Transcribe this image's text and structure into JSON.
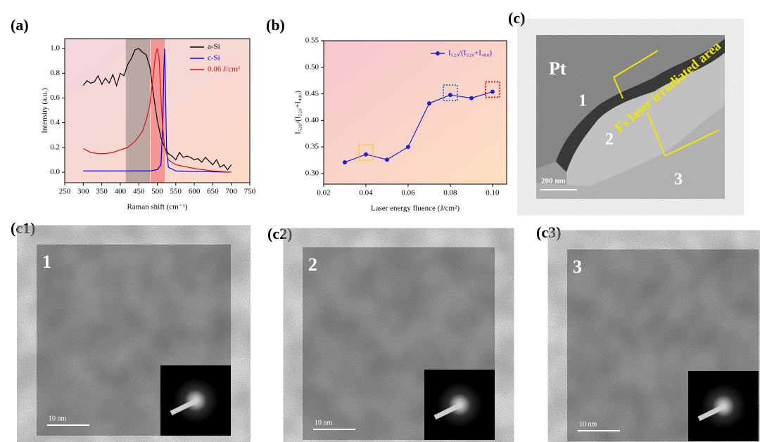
{
  "chart_data": [
    {
      "type": "line",
      "panel_label": "(a)",
      "x_label": "Raman shift (cm⁻¹)",
      "y_label": "Intensity (a.u.)",
      "xlim": [
        250,
        750
      ],
      "xticks": [
        250,
        300,
        350,
        400,
        450,
        500,
        550,
        600,
        650,
        700,
        750
      ],
      "ylim": [
        -0.085,
        1.08
      ],
      "yticks": [
        {
          "value": 0,
          "label": "0.0"
        },
        0.2,
        0.4,
        0.6,
        0.8,
        {
          "value": 1,
          "label": "1.0"
        }
      ],
      "shaded_regions": [
        {
          "xlim": [
            415,
            480
          ],
          "color": "#8a7f7a"
        },
        {
          "xlim": [
            482,
            520
          ],
          "color": "#f06060"
        }
      ],
      "legend": "upper right",
      "series": [
        {
          "name": "a-Si",
          "color": "#000000",
          "x": [
            300,
            310,
            320,
            330,
            340,
            350,
            360,
            370,
            380,
            390,
            400,
            410,
            420,
            430,
            440,
            450,
            460,
            470,
            480,
            490,
            500,
            510,
            520,
            530,
            540,
            550,
            560,
            570,
            580,
            590,
            600,
            610,
            620,
            630,
            640,
            650,
            660,
            670,
            680,
            690,
            700
          ],
          "values": [
            0.7,
            0.74,
            0.72,
            0.73,
            0.78,
            0.71,
            0.76,
            0.72,
            0.79,
            0.7,
            0.8,
            0.78,
            0.87,
            0.92,
            0.99,
            1.0,
            0.97,
            0.95,
            0.85,
            0.62,
            0.42,
            0.28,
            0.2,
            0.15,
            0.13,
            0.1,
            0.16,
            0.12,
            0.13,
            0.12,
            0.1,
            0.11,
            0.08,
            0.12,
            0.09,
            0.06,
            0.1,
            0.04,
            0.06,
            0.02,
            0.06
          ]
        },
        {
          "name": "c-Si",
          "color": "#0000ee",
          "x": [
            300,
            400,
            480,
            500,
            510,
            515,
            518,
            520,
            522,
            525,
            530,
            550,
            700
          ],
          "values": [
            0.01,
            0.01,
            0.01,
            0.02,
            0.06,
            0.4,
            0.85,
            1.0,
            0.7,
            0.2,
            0.04,
            0.01,
            0.0
          ]
        },
        {
          "name": "0.06 J/cm²",
          "color": "#dd1111",
          "x": [
            300,
            320,
            340,
            360,
            380,
            400,
            420,
            440,
            460,
            470,
            480,
            490,
            495,
            500,
            505,
            510,
            515,
            520,
            530,
            550,
            600,
            650,
            700
          ],
          "values": [
            0.19,
            0.16,
            0.15,
            0.15,
            0.16,
            0.18,
            0.2,
            0.25,
            0.33,
            0.42,
            0.55,
            0.8,
            0.95,
            1.0,
            0.92,
            0.6,
            0.35,
            0.2,
            0.1,
            0.06,
            0.03,
            0.01,
            0.0
          ]
        }
      ]
    },
    {
      "type": "line",
      "panel_label": "(b)",
      "x_label": "Laser energy fluence (J/cm²)",
      "y_label": "I₅₂₀/(I₅₂₀+I₄₈₀)",
      "xlim": [
        0.02,
        0.1067
      ],
      "xticks": [
        0.02,
        0.04,
        0.06,
        0.08,
        {
          "value": 0.1,
          "label": "0.10"
        }
      ],
      "ylim": [
        0.28,
        0.55
      ],
      "yticks": [
        {
          "value": 0.3,
          "label": "0.30"
        },
        0.35,
        {
          "value": 0.4,
          "label": "0.40"
        },
        0.45,
        {
          "value": 0.5,
          "label": "0.50"
        },
        0.55
      ],
      "legend": "upper right",
      "x": [
        0.03,
        0.04,
        0.05,
        0.06,
        0.07,
        0.08,
        0.09,
        0.1
      ],
      "series": [
        {
          "name": "I₅₂₀/(I₅₂₀+I₄₈₀)",
          "color": "#2222cc",
          "values": [
            0.321,
            0.336,
            0.326,
            0.35,
            0.432,
            0.448,
            0.442,
            0.454
          ]
        }
      ],
      "highlights": [
        {
          "x": 0.04,
          "color": "#f0d000"
        },
        {
          "x": 0.08,
          "color": "#2a7fbf"
        },
        {
          "x": 0.1,
          "color": "#dd1111"
        }
      ]
    }
  ],
  "panel_c": {
    "label": "(c)",
    "material": "Pt",
    "regions": [
      "1",
      "2",
      "3"
    ],
    "annotation": "Fs laser irradiated area",
    "scale_bar": "200 nm"
  },
  "hrtem": [
    {
      "label": "(c1)",
      "region": "1",
      "scale_bar": "10 nm"
    },
    {
      "label": "(c2)",
      "region": "2",
      "scale_bar": "10 nm"
    },
    {
      "label": "(c3)",
      "region": "3",
      "scale_bar": "10 nm"
    }
  ]
}
